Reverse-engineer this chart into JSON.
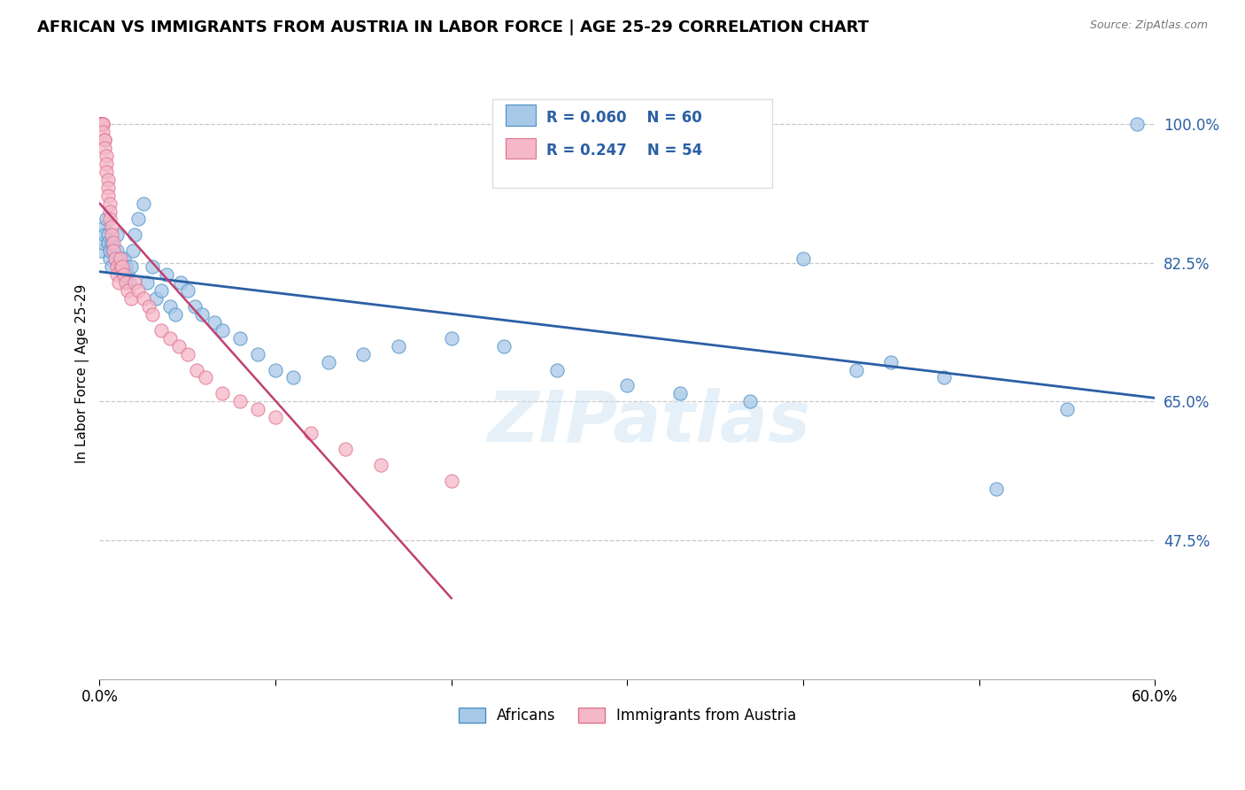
{
  "title": "AFRICAN VS IMMIGRANTS FROM AUSTRIA IN LABOR FORCE | AGE 25-29 CORRELATION CHART",
  "source": "Source: ZipAtlas.com",
  "ylabel": "In Labor Force | Age 25-29",
  "xmin": 0.0,
  "xmax": 0.6,
  "ymin": 0.3,
  "ymax": 1.07,
  "ytick_vals": [
    0.475,
    0.65,
    0.825,
    1.0
  ],
  "ytick_labels": [
    "47.5%",
    "65.0%",
    "82.5%",
    "100.0%"
  ],
  "blue_color": "#a8c8e8",
  "blue_edge_color": "#4a90c4",
  "pink_color": "#f4b8c8",
  "pink_edge_color": "#e07090",
  "blue_line_color": "#2b5fa5",
  "pink_line_color": "#c04070",
  "legend_blue_fill": "#a8c8e8",
  "legend_pink_fill": "#f4b8c8",
  "legend_text_color": "#2b5fa5",
  "legend_r1_text": "R = 0.060",
  "legend_n1_text": "N = 60",
  "legend_r2_text": "R = 0.247",
  "legend_n2_text": "N = 54",
  "watermark": "ZIPatlas",
  "background_color": "#ffffff",
  "grid_color": "#c8c8c8",
  "blue_x": [
    0.001,
    0.002,
    0.003,
    0.003,
    0.004,
    0.005,
    0.005,
    0.006,
    0.006,
    0.007,
    0.007,
    0.008,
    0.009,
    0.01,
    0.01,
    0.011,
    0.012,
    0.013,
    0.014,
    0.015,
    0.016,
    0.017,
    0.018,
    0.019,
    0.02,
    0.022,
    0.025,
    0.027,
    0.03,
    0.032,
    0.035,
    0.038,
    0.04,
    0.043,
    0.046,
    0.05,
    0.054,
    0.058,
    0.065,
    0.07,
    0.08,
    0.09,
    0.1,
    0.11,
    0.13,
    0.15,
    0.17,
    0.2,
    0.23,
    0.26,
    0.3,
    0.33,
    0.37,
    0.4,
    0.43,
    0.45,
    0.48,
    0.51,
    0.55,
    0.59
  ],
  "blue_y": [
    0.84,
    0.85,
    0.87,
    0.86,
    0.88,
    0.86,
    0.85,
    0.83,
    0.84,
    0.85,
    0.82,
    0.84,
    0.83,
    0.86,
    0.84,
    0.83,
    0.82,
    0.81,
    0.83,
    0.82,
    0.81,
    0.8,
    0.82,
    0.84,
    0.86,
    0.88,
    0.9,
    0.8,
    0.82,
    0.78,
    0.79,
    0.81,
    0.77,
    0.76,
    0.8,
    0.79,
    0.77,
    0.76,
    0.75,
    0.74,
    0.73,
    0.71,
    0.69,
    0.68,
    0.7,
    0.71,
    0.72,
    0.73,
    0.72,
    0.69,
    0.67,
    0.66,
    0.65,
    0.83,
    0.69,
    0.7,
    0.68,
    0.54,
    0.64,
    1.0
  ],
  "pink_x": [
    0.001,
    0.001,
    0.001,
    0.001,
    0.002,
    0.002,
    0.002,
    0.002,
    0.003,
    0.003,
    0.003,
    0.004,
    0.004,
    0.004,
    0.005,
    0.005,
    0.005,
    0.006,
    0.006,
    0.006,
    0.007,
    0.007,
    0.008,
    0.008,
    0.009,
    0.01,
    0.01,
    0.011,
    0.012,
    0.012,
    0.013,
    0.014,
    0.015,
    0.016,
    0.018,
    0.02,
    0.022,
    0.025,
    0.028,
    0.03,
    0.035,
    0.04,
    0.045,
    0.05,
    0.055,
    0.06,
    0.07,
    0.08,
    0.09,
    0.1,
    0.12,
    0.14,
    0.16,
    0.2
  ],
  "pink_y": [
    1.0,
    1.0,
    1.0,
    1.0,
    1.0,
    1.0,
    1.0,
    0.99,
    0.98,
    0.98,
    0.97,
    0.96,
    0.95,
    0.94,
    0.93,
    0.92,
    0.91,
    0.9,
    0.89,
    0.88,
    0.87,
    0.86,
    0.85,
    0.84,
    0.83,
    0.82,
    0.81,
    0.8,
    0.82,
    0.83,
    0.82,
    0.81,
    0.8,
    0.79,
    0.78,
    0.8,
    0.79,
    0.78,
    0.77,
    0.76,
    0.74,
    0.73,
    0.72,
    0.71,
    0.69,
    0.68,
    0.66,
    0.65,
    0.64,
    0.63,
    0.61,
    0.59,
    0.57,
    0.55
  ]
}
